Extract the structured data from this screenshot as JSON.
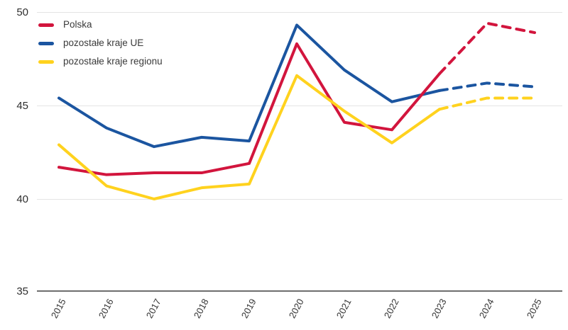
{
  "chart_data": {
    "type": "line",
    "title": "",
    "xlabel": "",
    "ylabel": "",
    "categories": [
      "2015",
      "2016",
      "2017",
      "2018",
      "2019",
      "2020",
      "2021",
      "2022",
      "2023",
      "2024",
      "2025"
    ],
    "series": [
      {
        "name": "Polska",
        "color": "#D2153D",
        "values": [
          41.7,
          41.3,
          41.4,
          41.4,
          41.9,
          48.3,
          44.1,
          43.7,
          46.7,
          49.4,
          48.9
        ],
        "forecast_from_index": 8
      },
      {
        "name": "pozostałe kraje UE",
        "color": "#1B55A0",
        "values": [
          45.4,
          43.8,
          42.8,
          43.3,
          43.1,
          49.3,
          46.9,
          45.2,
          45.8,
          46.2,
          46.0
        ],
        "forecast_from_index": 8
      },
      {
        "name": "pozostałe kraje regionu",
        "color": "#FFD21E",
        "values": [
          42.9,
          40.7,
          40.0,
          40.6,
          40.8,
          46.6,
          44.7,
          43.0,
          44.8,
          45.4,
          45.4
        ],
        "forecast_from_index": 8
      }
    ],
    "ylim": [
      35,
      50
    ],
    "yticks": [
      35,
      40,
      45,
      50
    ],
    "grid": "horizontal",
    "legend_position": "top-left",
    "forecast_style": "dashed",
    "colors": {
      "grid": "#E4E4E4",
      "axis": "#6E6E6E",
      "tick_text": "#353535"
    }
  }
}
